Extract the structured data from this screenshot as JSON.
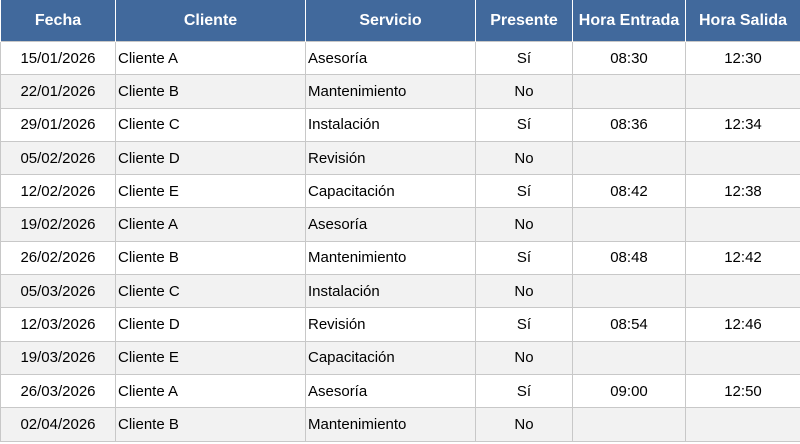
{
  "table": {
    "columns": [
      "Fecha",
      "Cliente",
      "Servicio",
      "Presente",
      "Hora Entrada",
      "Hora Salida"
    ],
    "rows": [
      [
        "15/01/2026",
        "Cliente A",
        "Asesoría",
        "Sí",
        "08:30",
        "12:30"
      ],
      [
        "22/01/2026",
        "Cliente B",
        "Mantenimiento",
        "No",
        null,
        null
      ],
      [
        "29/01/2026",
        "Cliente C",
        "Instalación",
        "Sí",
        "08:36",
        "12:34"
      ],
      [
        "05/02/2026",
        "Cliente D",
        "Revisión",
        "No",
        null,
        null
      ],
      [
        "12/02/2026",
        "Cliente E",
        "Capacitación",
        "Sí",
        "08:42",
        "12:38"
      ],
      [
        "19/02/2026",
        "Cliente A",
        "Asesoría",
        "No",
        null,
        null
      ],
      [
        "26/02/2026",
        "Cliente B",
        "Mantenimiento",
        "Sí",
        "08:48",
        "12:42"
      ],
      [
        "05/03/2026",
        "Cliente C",
        "Instalación",
        "No",
        null,
        null
      ],
      [
        "12/03/2026",
        "Cliente D",
        "Revisión",
        "Sí",
        "08:54",
        "12:46"
      ],
      [
        "19/03/2026",
        "Cliente E",
        "Capacitación",
        "No",
        null,
        null
      ],
      [
        "26/03/2026",
        "Cliente A",
        "Asesoría",
        "Sí",
        "09:00",
        "12:50"
      ],
      [
        "02/04/2026",
        "Cliente B",
        "Mantenimiento",
        "No",
        null,
        null
      ]
    ]
  }
}
